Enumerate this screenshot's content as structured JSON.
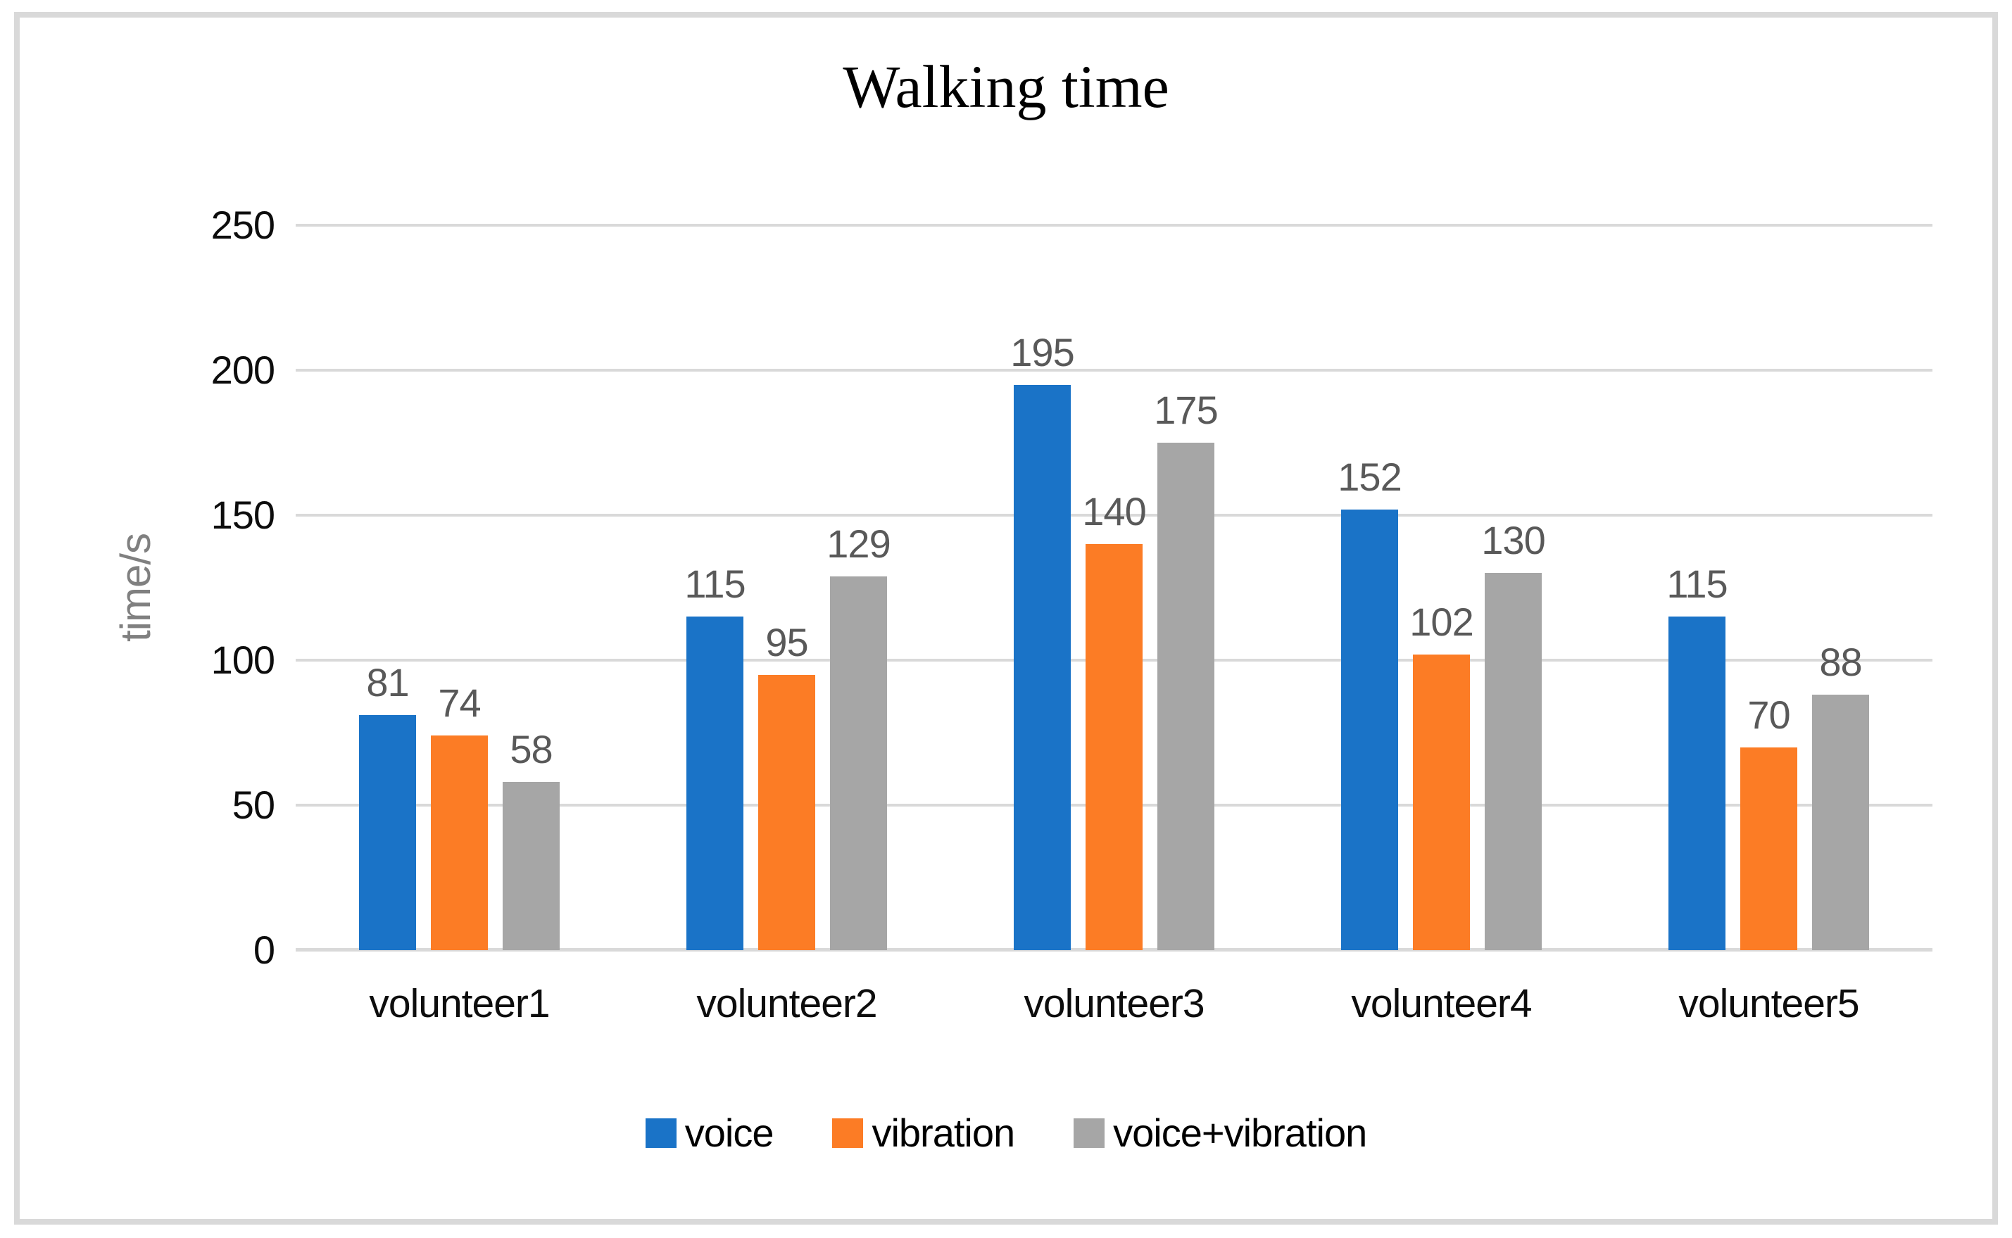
{
  "figure": {
    "background": "#FFFFFF",
    "frame_border_color": "#D9D9D9"
  },
  "chart_data": {
    "type": "bar",
    "title": "Walking time",
    "categories": [
      "volunteer1",
      "volunteer2",
      "volunteer3",
      "volunteer4",
      "volunteer5"
    ],
    "series": [
      {
        "name": "voice",
        "color": "#1A73C7",
        "values": [
          81,
          115,
          195,
          152,
          115
        ]
      },
      {
        "name": "vibration",
        "color": "#FC7C25",
        "values": [
          74,
          95,
          140,
          102,
          70
        ]
      },
      {
        "name": "voice+vibration",
        "color": "#A6A6A6",
        "values": [
          58,
          129,
          175,
          130,
          88
        ]
      }
    ],
    "y_axis": {
      "title": "time/s",
      "min": 0,
      "max": 250,
      "tick_interval": 50
    },
    "grid": true,
    "data_labels": true,
    "legend_position": "bottom",
    "colors": {
      "gridline": "#D9D9D9",
      "data_label": "#595959",
      "axis_title": "#808080",
      "tick_label": "#0D0D0D",
      "category_label": "#0D0D0D",
      "legend_text": "#000000"
    }
  }
}
